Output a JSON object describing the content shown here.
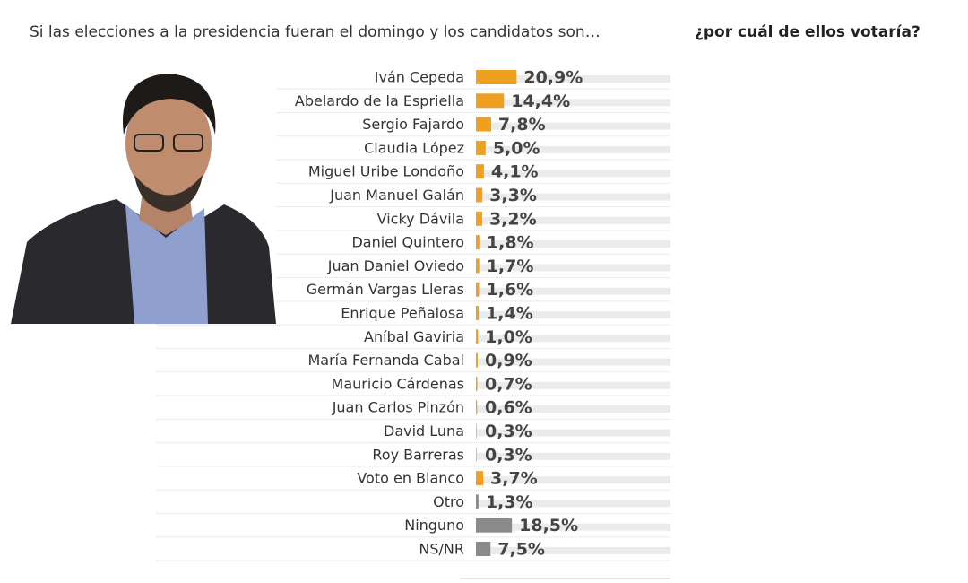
{
  "chart_data": {
    "type": "bar",
    "orientation": "horizontal",
    "title": "Si las elecciones a la presidencia fueran el domingo y los candidatos son…",
    "title_emphasis": "¿por cuál de ellos votaría?",
    "categories": [
      "Iván Cepeda",
      "Abelardo de la Espriella",
      "Sergio Fajardo",
      "Claudia López",
      "Miguel Uribe Londoño",
      "Juan Manuel Galán",
      "Vicky Dávila",
      "Daniel Quintero",
      "Juan Daniel Oviedo",
      "Germán Vargas Lleras",
      "Enrique Peñalosa",
      "Aníbal Gaviria",
      "María Fernanda Cabal",
      "Mauricio Cárdenas",
      "Juan Carlos Pinzón",
      "David Luna",
      "Roy Barreras",
      "Voto en Blanco",
      "Otro",
      "Ninguno",
      "NS/NR"
    ],
    "values": [
      20.9,
      14.4,
      7.8,
      5.0,
      4.1,
      3.3,
      3.2,
      1.8,
      1.7,
      1.6,
      1.4,
      1.0,
      0.9,
      0.7,
      0.6,
      0.3,
      0.3,
      3.7,
      1.3,
      18.5,
      7.5
    ],
    "value_labels": [
      "20,9%",
      "14,4%",
      "7,8%",
      "5,0%",
      "4,1%",
      "3,3%",
      "3,2%",
      "1,8%",
      "1,7%",
      "1,6%",
      "1,4%",
      "1,0%",
      "0,9%",
      "0,7%",
      "0,6%",
      "0,3%",
      "0,3%",
      "3,7%",
      "1,3%",
      "18,5%",
      "7,5%"
    ],
    "colors": [
      "#f0a020",
      "#f0a020",
      "#f0a020",
      "#f0a020",
      "#f0a020",
      "#f0a020",
      "#f0a020",
      "#f0a020",
      "#f0a020",
      "#f0a020",
      "#f0a020",
      "#f0a020",
      "#f0a020",
      "#f0a020",
      "#f0a020",
      "#f0a020",
      "#f0a020",
      "#f0a020",
      "#8a8a8a",
      "#8a8a8a",
      "#8a8a8a"
    ],
    "xlim": [
      0,
      100
    ]
  }
}
